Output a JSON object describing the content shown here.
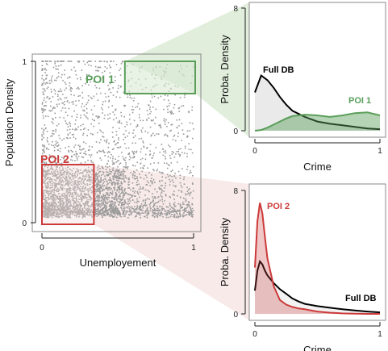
{
  "colors": {
    "poi1": "#5a9e5a",
    "poi1_fill": "#d9ead3",
    "poi2": "#cc3a3a",
    "poi2_fill": "#f0d8d6",
    "full": "#000000",
    "full_fill": "#e8e8e8",
    "points": "#9a9a9a"
  },
  "chart_data": [
    {
      "type": "scatter",
      "xlabel": "Unemployement",
      "ylabel": "Population Density",
      "xlim": [
        0,
        1
      ],
      "ylim": [
        0,
        1
      ],
      "xticks": [
        "0",
        "1"
      ],
      "yticks": [
        "0",
        "1"
      ],
      "distribution": "dense cluster at low unemployment (0-0.5) and low density (0.05-0.3), thinning toward high values",
      "regions": [
        {
          "name": "POI 1",
          "x": [
            0.6,
            1.0
          ],
          "y": [
            0.8,
            1.0
          ]
        },
        {
          "name": "POI 2",
          "x": [
            0.0,
            0.3
          ],
          "y": [
            0.0,
            0.3
          ]
        }
      ]
    },
    {
      "type": "area",
      "xlabel": "Crime",
      "ylabel": "Proba. Density",
      "xlim": [
        0,
        1
      ],
      "ylim": [
        0,
        8
      ],
      "xticks": [
        "0",
        "1"
      ],
      "yticks": [
        "0",
        "8"
      ],
      "x": [
        0,
        0.05,
        0.1,
        0.15,
        0.2,
        0.25,
        0.3,
        0.4,
        0.5,
        0.6,
        0.7,
        0.8,
        0.9,
        1.0
      ],
      "series": [
        {
          "name": "Full DB",
          "values": [
            2.5,
            3.6,
            3.3,
            2.8,
            2.2,
            1.7,
            1.3,
            0.9,
            0.6,
            0.45,
            0.35,
            0.25,
            0.15,
            0.1
          ]
        },
        {
          "name": "POI 1",
          "values": [
            0,
            0.05,
            0.2,
            0.4,
            0.6,
            0.8,
            0.95,
            1.05,
            1.0,
            0.9,
            1.0,
            1.15,
            1.2,
            1.0
          ]
        }
      ]
    },
    {
      "type": "area",
      "xlabel": "Crime",
      "ylabel": "Proba. Density",
      "xlim": [
        0,
        1
      ],
      "ylim": [
        0,
        8
      ],
      "xticks": [
        "0",
        "1"
      ],
      "yticks": [
        "0",
        "8"
      ],
      "x": [
        0,
        0.02,
        0.04,
        0.06,
        0.08,
        0.1,
        0.15,
        0.2,
        0.25,
        0.3,
        0.35,
        0.4,
        0.5,
        0.6,
        0.7,
        0.8,
        0.9,
        1.0
      ],
      "series": [
        {
          "name": "Full DB",
          "values": [
            1.5,
            2.8,
            3.4,
            3.2,
            2.8,
            2.5,
            2.0,
            1.6,
            1.3,
            1.0,
            0.8,
            0.65,
            0.5,
            0.4,
            0.3,
            0.22,
            0.15,
            0.1
          ]
        },
        {
          "name": "POI 2",
          "values": [
            3.0,
            6.0,
            7.2,
            6.5,
            5.0,
            3.6,
            1.8,
            0.9,
            0.6,
            0.45,
            0.35,
            0.3,
            0.15,
            0.08,
            0.03,
            0.01,
            0.0,
            0.0
          ]
        }
      ]
    }
  ]
}
